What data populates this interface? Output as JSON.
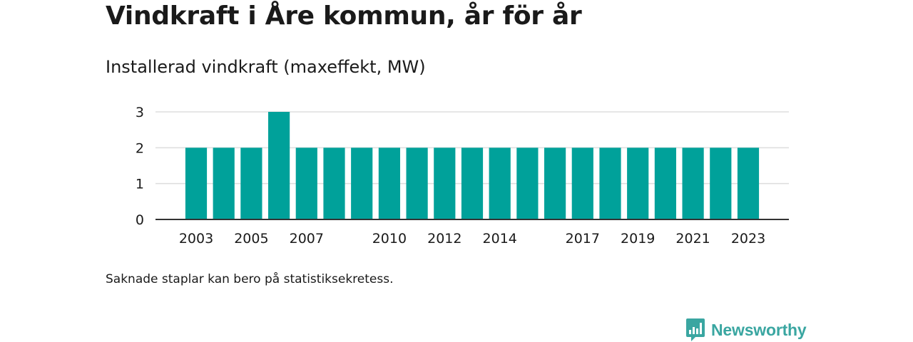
{
  "title": "Vindkraft i Åre kommun, år för år",
  "subtitle": "Installerad vindkraft (maxeffekt, MW)",
  "footnote": "Saknade staplar kan bero på statistiksekretess.",
  "logo": {
    "text": "Newsworthy",
    "icon": "newsworthy-chart-icon"
  },
  "colors": {
    "bar": "#00a19a",
    "grid": "#dddddd",
    "axis": "#333333",
    "logo": "#3aa6a1"
  },
  "chart_data": {
    "type": "bar",
    "title": "Installerad vindkraft (maxeffekt, MW)",
    "xlabel": "",
    "ylabel": "",
    "categories": [
      "2003",
      "2004",
      "2005",
      "2006",
      "2007",
      "2008",
      "2009",
      "2010",
      "2011",
      "2012",
      "2013",
      "2014",
      "2015",
      "2016",
      "2017",
      "2018",
      "2019",
      "2020",
      "2021",
      "2022",
      "2023"
    ],
    "values": [
      2,
      2,
      2,
      3,
      2,
      2,
      2,
      2,
      2,
      2,
      2,
      2,
      2,
      2,
      2,
      2,
      2,
      2,
      2,
      2,
      2
    ],
    "x_tick_labels": [
      "2003",
      "2005",
      "2007",
      "2010",
      "2012",
      "2014",
      "2017",
      "2019",
      "2021",
      "2023"
    ],
    "y_ticks": [
      0,
      1,
      2,
      3
    ],
    "ylim": [
      0,
      3
    ],
    "grid": true,
    "legend": "none"
  }
}
